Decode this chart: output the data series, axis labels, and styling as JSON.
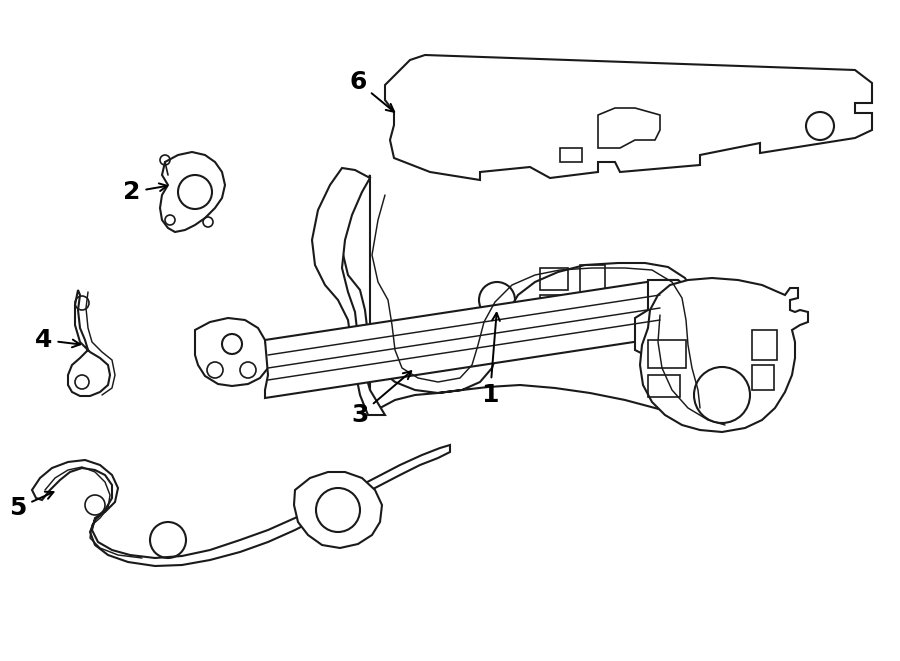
{
  "bg": "#ffffff",
  "lc": "#1a1a1a",
  "lw": 1.5,
  "fw": 9.0,
  "fh": 6.61,
  "dpi": 100
}
